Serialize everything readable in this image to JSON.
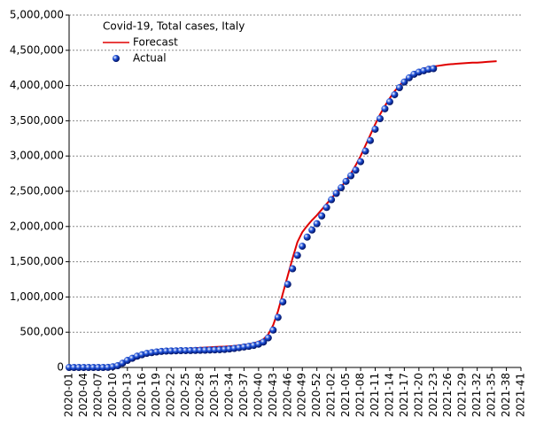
{
  "chart_data": {
    "type": "line-scatter",
    "title": "Covid-19, Total cases, Italy",
    "legend": "upper left",
    "grid": true,
    "categories": [
      "2020-01",
      null,
      null,
      "2020-04",
      null,
      null,
      "2020-07",
      null,
      null,
      "2020-10",
      null,
      null,
      "2020-13",
      null,
      null,
      "2020-16",
      null,
      null,
      "2020-19",
      null,
      null,
      "2020-22",
      null,
      null,
      "2020-25",
      null,
      null,
      "2020-28",
      null,
      null,
      "2020-31",
      null,
      null,
      "2020-34",
      null,
      null,
      "2020-37",
      null,
      null,
      "2020-40",
      null,
      null,
      "2020-43",
      null,
      null,
      "2020-46",
      null,
      null,
      "2020-49",
      null,
      null,
      "2020-52",
      null,
      null,
      "2021-02",
      null,
      null,
      "2021-05",
      null,
      null,
      "2021-08",
      null,
      null,
      "2021-11",
      null,
      null,
      "2021-14",
      null,
      null,
      "2021-17",
      null,
      null,
      "2021-20",
      null,
      null,
      "2021-23",
      null,
      null,
      "2021-26",
      null,
      null,
      "2021-29",
      null,
      null,
      "2021-32",
      null,
      null,
      "2021-35",
      null,
      null,
      "2021-38",
      null,
      null,
      "2021-41"
    ],
    "ylim": [
      0,
      5000000
    ],
    "yticks": [
      0,
      {
        "value": 500000,
        "label": "500,000"
      },
      {
        "value": 1000000,
        "label": "1,000,000"
      },
      {
        "value": 1500000,
        "label": "1,500,000"
      },
      {
        "value": 2000000,
        "label": "2,000,000"
      },
      {
        "value": 2500000,
        "label": "2,500,000"
      },
      {
        "value": 3000000,
        "label": "3,000,000"
      },
      {
        "value": 3500000,
        "label": "3,500,000"
      },
      {
        "value": 4000000,
        "label": "4,000,000"
      },
      {
        "value": 4500000,
        "label": "4,500,000"
      },
      {
        "value": 5000000,
        "label": "5,000,000"
      }
    ],
    "series": [
      {
        "name": "Forecast",
        "kind": "line",
        "color": "#e00000",
        "values": [
          0,
          0,
          0,
          0,
          0,
          0,
          5000,
          10000,
          15000,
          20000,
          35000,
          55000,
          80000,
          105000,
          130000,
          155000,
          175000,
          195000,
          210000,
          220000,
          230000,
          240000,
          248000,
          255000,
          262000,
          268000,
          273000,
          278000,
          282000,
          286000,
          290000,
          293000,
          296000,
          300000,
          305000,
          312000,
          320000,
          330000,
          345000,
          365000,
          400000,
          470000,
          600000,
          800000,
          1050000,
          1300000,
          1550000,
          1780000,
          1920000,
          2010000,
          2090000,
          2160000,
          2240000,
          2320000,
          2400000,
          2480000,
          2560000,
          2650000,
          2750000,
          2870000,
          3000000,
          3150000,
          3300000,
          3450000,
          3590000,
          3710000,
          3820000,
          3920000,
          4000000,
          4070000,
          4130000,
          4180000,
          4210000,
          4240000,
          4260000,
          4270000,
          4280000,
          4290000,
          4300000,
          4305000,
          4310000,
          4315000,
          4320000,
          4325000,
          4325000,
          4330000,
          4335000,
          4340000,
          4345000,
          null,
          null,
          null,
          null,
          null
        ]
      },
      {
        "name": "Actual",
        "kind": "points",
        "color": "#1e50d8",
        "values": [
          0,
          0,
          0,
          0,
          0,
          0,
          0,
          0,
          1000,
          10000,
          25000,
          60000,
          100000,
          130000,
          160000,
          180000,
          200000,
          210000,
          220000,
          227000,
          232000,
          234000,
          236000,
          238000,
          239000,
          240000,
          242000,
          243000,
          245000,
          247000,
          249000,
          252000,
          256000,
          262000,
          270000,
          280000,
          290000,
          300000,
          312000,
          330000,
          360000,
          420000,
          530000,
          710000,
          930000,
          1180000,
          1400000,
          1590000,
          1720000,
          1850000,
          1950000,
          2040000,
          2150000,
          2270000,
          2380000,
          2470000,
          2550000,
          2640000,
          2720000,
          2800000,
          2920000,
          3070000,
          3220000,
          3380000,
          3530000,
          3670000,
          3770000,
          3870000,
          3970000,
          4050000,
          4110000,
          4160000,
          4190000,
          4210000,
          4230000,
          4240000,
          null,
          null,
          null,
          null,
          null,
          null,
          null,
          null,
          null,
          null,
          null,
          null,
          null,
          null,
          null,
          null,
          null,
          null
        ]
      }
    ]
  }
}
